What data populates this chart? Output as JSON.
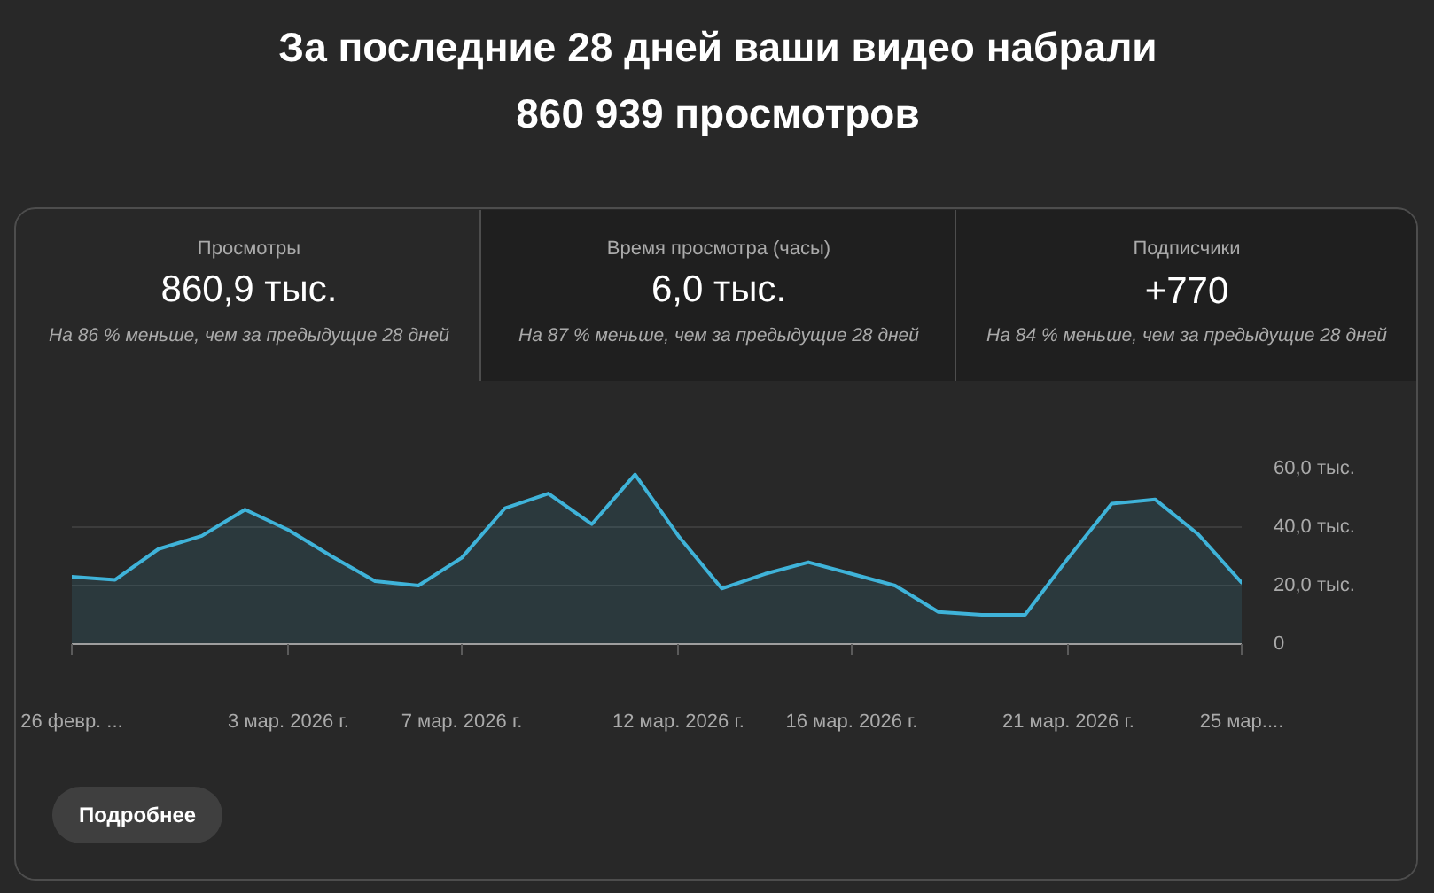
{
  "chart_data": {
    "type": "area",
    "title": "За последние 28 дней ваши видео набрали\n860 939 просмотров",
    "annotations": [
      "Просмотры",
      "860,9 тыс.",
      "На 86 % меньше, чем за предыдущие 28 дней",
      "Время просмотра (часы)",
      "6,0 тыс.",
      "На 87 % меньше, чем за предыдущие 28 дней",
      "Подписчики",
      "+770",
      "На 84 % меньше, чем за предыдущие 28 дней",
      "Подробнее"
    ],
    "x": [
      "2026-02-26",
      "2026-02-27",
      "2026-02-28",
      "2026-03-01",
      "2026-03-02",
      "2026-03-03",
      "2026-03-04",
      "2026-03-05",
      "2026-03-06",
      "2026-03-07",
      "2026-03-08",
      "2026-03-09",
      "2026-03-10",
      "2026-03-11",
      "2026-03-12",
      "2026-03-13",
      "2026-03-14",
      "2026-03-15",
      "2026-03-16",
      "2026-03-17",
      "2026-03-18",
      "2026-03-19",
      "2026-03-20",
      "2026-03-21",
      "2026-03-22",
      "2026-03-23",
      "2026-03-24",
      "2026-03-25"
    ],
    "series": [
      {
        "color": "#3fb3d9",
        "values": [
          23,
          22,
          32.5,
          37,
          46,
          39,
          30,
          21.5,
          20,
          29.5,
          46.5,
          51.5,
          41,
          58,
          37,
          19,
          24,
          28,
          24,
          20,
          11,
          10,
          10,
          29.5,
          48,
          49.5,
          37.5,
          21
        ]
      }
    ],
    "xlim": [
      "2026-02-26",
      "2026-03-25"
    ],
    "xticks": [
      {
        "value": "2026-02-26",
        "label": "26 февр. ..."
      },
      {
        "value": "2026-03-03",
        "label": "3 мар. 2026 г."
      },
      {
        "value": "2026-03-07",
        "label": "7 мар. 2026 г."
      },
      {
        "value": "2026-03-12",
        "label": "12 мар. 2026 г."
      },
      {
        "value": "2026-03-16",
        "label": "16 мар. 2026 г."
      },
      {
        "value": "2026-03-21",
        "label": "21 мар. 2026 г."
      },
      {
        "value": "2026-03-25",
        "label": "25 мар...."
      }
    ],
    "ylim": [
      0,
      60
    ],
    "yticks": [
      0,
      {
        "value": 20,
        "label": "20,0 тыс."
      },
      {
        "value": 40,
        "label": "40,0 тыс."
      },
      {
        "value": 60,
        "label": "60,0 тыс."
      }
    ],
    "grid": "y"
  }
}
